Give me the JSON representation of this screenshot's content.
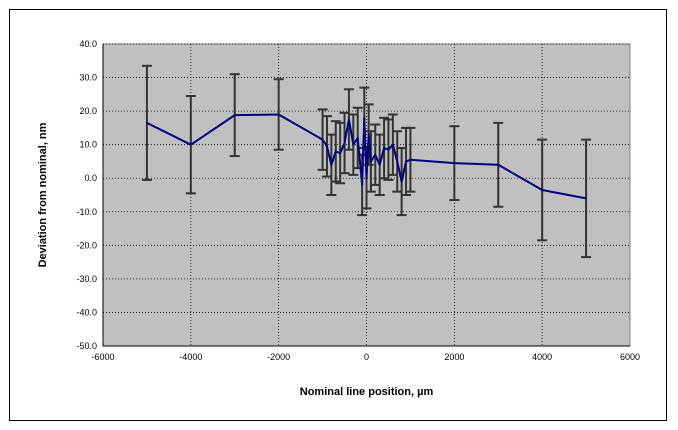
{
  "chart_data": {
    "type": "line",
    "xlabel": "Nominal line position, µm",
    "ylabel": "Deviation from nominal, nm",
    "xlim": [
      -6000,
      6000
    ],
    "ylim": [
      -50,
      40
    ],
    "x_ticks": [
      -6000,
      -4000,
      -2000,
      0,
      2000,
      4000,
      6000
    ],
    "y_ticks": [
      40,
      30,
      20,
      10,
      0,
      -10,
      -20,
      -30,
      -40,
      -50
    ],
    "x_tick_labels": [
      "-6000",
      "-4000",
      "-2000",
      "0",
      "2000",
      "4000",
      "6000"
    ],
    "y_tick_labels": [
      "40.0",
      "30.0",
      "20.0",
      "10.0",
      "0.0",
      "-10.0",
      "-20.0",
      "-30.0",
      "-40.0",
      "-50.0"
    ],
    "grid": true,
    "grid_style": "dotted",
    "plot_background": "#c0c0c0",
    "line_color": "#000080",
    "error_bar_color": "#333333",
    "series": [
      {
        "x": [
          -5000,
          -4000,
          -3000,
          -2000,
          -1000,
          -900,
          -800,
          -700,
          -600,
          -500,
          -400,
          -300,
          -200,
          -100,
          -50,
          0,
          50,
          100,
          200,
          300,
          400,
          500,
          600,
          700,
          800,
          900,
          1000,
          2000,
          3000,
          4000,
          5000
        ],
        "y": [
          16.5,
          10.0,
          18.8,
          19.0,
          11.5,
          9.5,
          4.0,
          8.0,
          7.5,
          10.5,
          17.5,
          10.0,
          12.0,
          -2.0,
          18.0,
          0.0,
          13.0,
          5.0,
          7.0,
          4.0,
          9.0,
          8.5,
          10.0,
          5.0,
          -1.0,
          5.0,
          5.5,
          4.5,
          4.0,
          -3.5,
          -6.0
        ],
        "err": [
          17.0,
          14.5,
          12.2,
          10.5,
          9.0,
          9.0,
          9.0,
          9.0,
          9.0,
          9.0,
          9.0,
          9.0,
          9.0,
          9.0,
          9.0,
          9.0,
          9.0,
          9.0,
          9.0,
          9.0,
          9.0,
          9.0,
          9.0,
          9.0,
          10.0,
          10.0,
          9.5,
          11.0,
          12.5,
          15.0,
          17.5
        ]
      }
    ]
  }
}
